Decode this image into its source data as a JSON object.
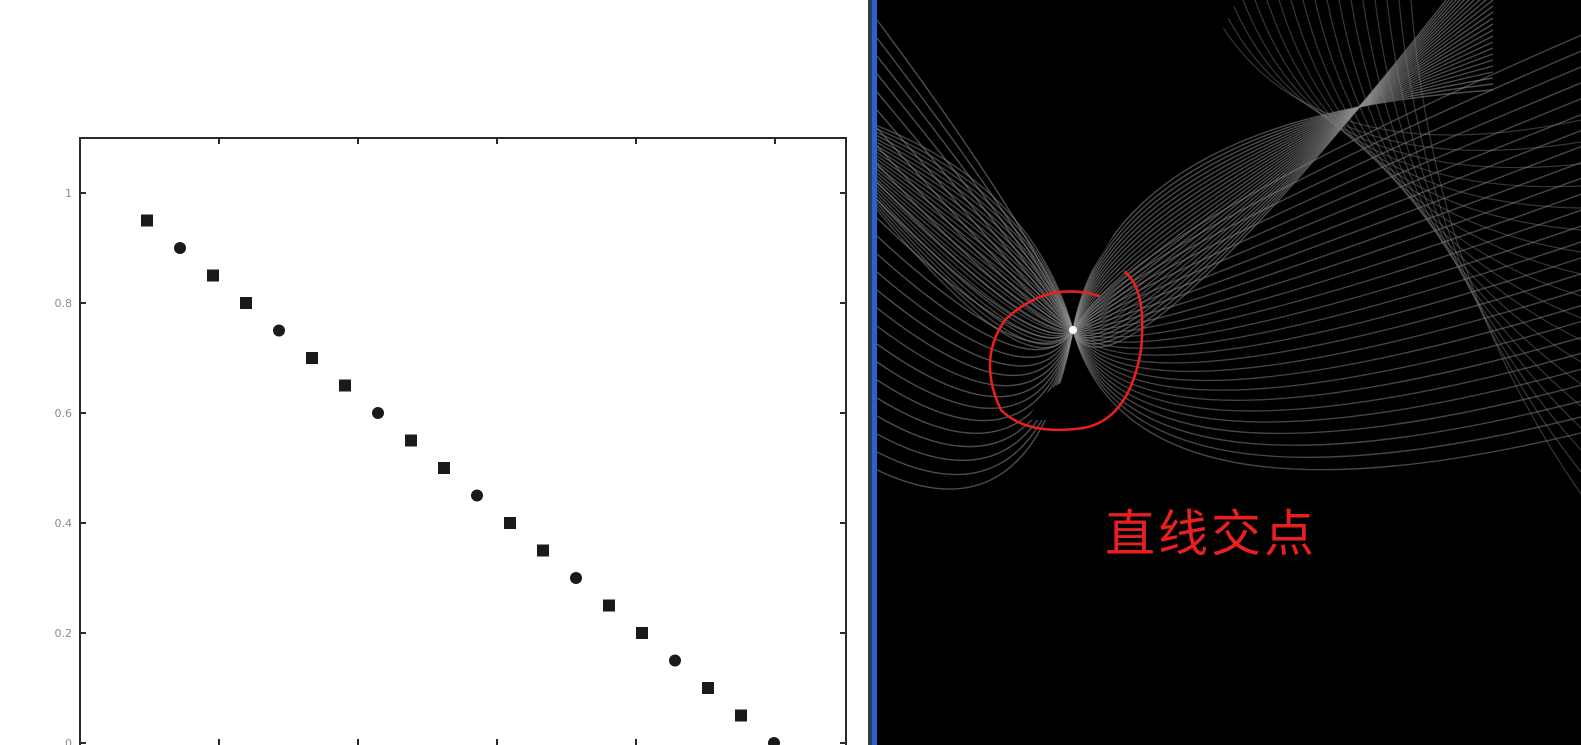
{
  "chart_data": [
    {
      "type": "scatter",
      "title": "",
      "xlabel": "",
      "ylabel": "",
      "y_ticks": [
        0,
        0.2,
        0.4,
        0.6,
        0.8,
        1
      ],
      "y_tick_labels": [
        "0",
        "0.2",
        "0.4",
        "0.6",
        "0.8",
        "1"
      ],
      "ylim": [
        0,
        1.1
      ],
      "xlim": [
        0,
        1.1
      ],
      "x_tick_count": 6,
      "grid": false,
      "marker_color": "#1a1a1a",
      "points": [
        {
          "x": 0.05,
          "y": 0.95
        },
        {
          "x": 0.1,
          "y": 0.9
        },
        {
          "x": 0.15,
          "y": 0.85
        },
        {
          "x": 0.2,
          "y": 0.8
        },
        {
          "x": 0.25,
          "y": 0.75
        },
        {
          "x": 0.3,
          "y": 0.7
        },
        {
          "x": 0.35,
          "y": 0.65
        },
        {
          "x": 0.4,
          "y": 0.6
        },
        {
          "x": 0.45,
          "y": 0.55
        },
        {
          "x": 0.5,
          "y": 0.5
        },
        {
          "x": 0.55,
          "y": 0.45
        },
        {
          "x": 0.6,
          "y": 0.4
        },
        {
          "x": 0.65,
          "y": 0.35
        },
        {
          "x": 0.7,
          "y": 0.3
        },
        {
          "x": 0.75,
          "y": 0.25
        },
        {
          "x": 0.8,
          "y": 0.2
        },
        {
          "x": 0.85,
          "y": 0.15
        },
        {
          "x": 0.9,
          "y": 0.1
        },
        {
          "x": 0.95,
          "y": 0.05
        },
        {
          "x": 1.0,
          "y": 0.0
        }
      ]
    },
    {
      "type": "heatmap",
      "title": "",
      "background_color": "#000000",
      "curve_color": "#bdbdbd",
      "description_of_content": ""
    }
  ],
  "annotation": {
    "label": "直线交点",
    "color": "#e82020"
  },
  "divider_color": "#2a5fd6"
}
